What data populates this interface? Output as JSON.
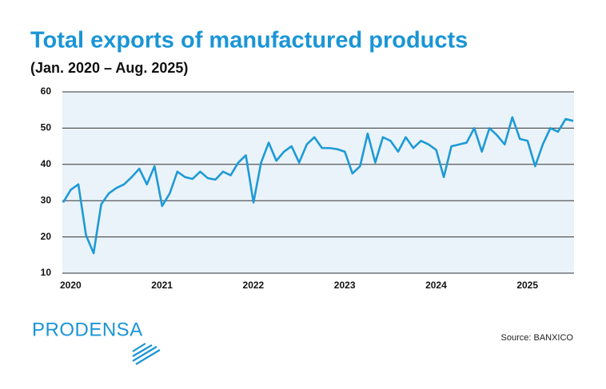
{
  "chart_data": {
    "type": "line",
    "title": "Total exports of manufactured products",
    "subtitle": "(Jan. 2020 – Aug. 2025)",
    "source": "Source: BANXICO",
    "categories": [
      "2020",
      null,
      null,
      null,
      null,
      null,
      null,
      null,
      null,
      null,
      null,
      null,
      "2021",
      null,
      null,
      null,
      null,
      null,
      null,
      null,
      null,
      null,
      null,
      null,
      "2022",
      null,
      null,
      null,
      null,
      null,
      null,
      null,
      null,
      null,
      null,
      null,
      "2023",
      null,
      null,
      null,
      null,
      null,
      null,
      null,
      null,
      null,
      null,
      null,
      "2024",
      null,
      null,
      null,
      null,
      null,
      null,
      null,
      null,
      null,
      null,
      null,
      "2025",
      null,
      null,
      null,
      null,
      null,
      null,
      null
    ],
    "values": [
      29.5,
      33,
      34.5,
      20.5,
      15.5,
      29,
      32,
      33.5,
      34.5,
      36.5,
      38.8,
      34.5,
      39.5,
      28.5,
      32,
      38,
      36.5,
      36,
      38,
      36.2,
      35.8,
      38,
      37,
      40.5,
      42.5,
      29.5,
      40.5,
      46,
      41,
      43.5,
      45,
      40.5,
      45.5,
      47.5,
      44.5,
      44.5,
      44.2,
      43.5,
      37.5,
      39.5,
      48.5,
      40.5,
      47.5,
      46.5,
      43.5,
      47.5,
      44.5,
      46.5,
      45.5,
      44,
      36.5,
      45,
      45.5,
      46,
      50,
      43.5,
      50,
      48,
      45.5,
      53,
      47,
      46.5,
      39.5,
      45.5,
      50,
      49,
      52.5,
      52
    ],
    "color": "#1e9ad6",
    "ylim": [
      10,
      60
    ],
    "yticks": [
      10,
      20,
      30,
      40,
      50,
      60
    ],
    "grid": true
  },
  "logo": "PRODENSA"
}
